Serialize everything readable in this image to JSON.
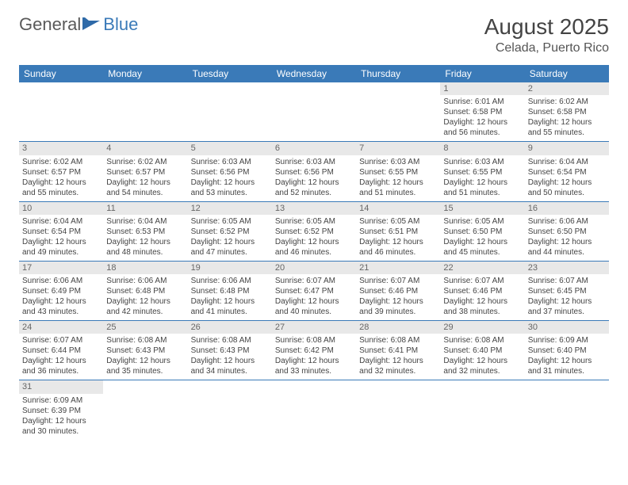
{
  "logo": {
    "text1": "General",
    "text2": "Blue"
  },
  "title": "August 2025",
  "location": "Celada, Puerto Rico",
  "colors": {
    "headerBg": "#3a7ab8",
    "dayBg": "#e8e8e8",
    "border": "#3a7ab8",
    "logoGray": "#5a5a5a",
    "logoBlue": "#3a7ab8"
  },
  "dayHeaders": [
    "Sunday",
    "Monday",
    "Tuesday",
    "Wednesday",
    "Thursday",
    "Friday",
    "Saturday"
  ],
  "weeks": [
    [
      {
        "blank": true
      },
      {
        "blank": true
      },
      {
        "blank": true
      },
      {
        "blank": true
      },
      {
        "blank": true
      },
      {
        "d": "1",
        "sr": "6:01 AM",
        "ss": "6:58 PM",
        "dl1": "Daylight: 12 hours",
        "dl2": "and 56 minutes."
      },
      {
        "d": "2",
        "sr": "6:02 AM",
        "ss": "6:58 PM",
        "dl1": "Daylight: 12 hours",
        "dl2": "and 55 minutes."
      }
    ],
    [
      {
        "d": "3",
        "sr": "6:02 AM",
        "ss": "6:57 PM",
        "dl1": "Daylight: 12 hours",
        "dl2": "and 55 minutes."
      },
      {
        "d": "4",
        "sr": "6:02 AM",
        "ss": "6:57 PM",
        "dl1": "Daylight: 12 hours",
        "dl2": "and 54 minutes."
      },
      {
        "d": "5",
        "sr": "6:03 AM",
        "ss": "6:56 PM",
        "dl1": "Daylight: 12 hours",
        "dl2": "and 53 minutes."
      },
      {
        "d": "6",
        "sr": "6:03 AM",
        "ss": "6:56 PM",
        "dl1": "Daylight: 12 hours",
        "dl2": "and 52 minutes."
      },
      {
        "d": "7",
        "sr": "6:03 AM",
        "ss": "6:55 PM",
        "dl1": "Daylight: 12 hours",
        "dl2": "and 51 minutes."
      },
      {
        "d": "8",
        "sr": "6:03 AM",
        "ss": "6:55 PM",
        "dl1": "Daylight: 12 hours",
        "dl2": "and 51 minutes."
      },
      {
        "d": "9",
        "sr": "6:04 AM",
        "ss": "6:54 PM",
        "dl1": "Daylight: 12 hours",
        "dl2": "and 50 minutes."
      }
    ],
    [
      {
        "d": "10",
        "sr": "6:04 AM",
        "ss": "6:54 PM",
        "dl1": "Daylight: 12 hours",
        "dl2": "and 49 minutes."
      },
      {
        "d": "11",
        "sr": "6:04 AM",
        "ss": "6:53 PM",
        "dl1": "Daylight: 12 hours",
        "dl2": "and 48 minutes."
      },
      {
        "d": "12",
        "sr": "6:05 AM",
        "ss": "6:52 PM",
        "dl1": "Daylight: 12 hours",
        "dl2": "and 47 minutes."
      },
      {
        "d": "13",
        "sr": "6:05 AM",
        "ss": "6:52 PM",
        "dl1": "Daylight: 12 hours",
        "dl2": "and 46 minutes."
      },
      {
        "d": "14",
        "sr": "6:05 AM",
        "ss": "6:51 PM",
        "dl1": "Daylight: 12 hours",
        "dl2": "and 46 minutes."
      },
      {
        "d": "15",
        "sr": "6:05 AM",
        "ss": "6:50 PM",
        "dl1": "Daylight: 12 hours",
        "dl2": "and 45 minutes."
      },
      {
        "d": "16",
        "sr": "6:06 AM",
        "ss": "6:50 PM",
        "dl1": "Daylight: 12 hours",
        "dl2": "and 44 minutes."
      }
    ],
    [
      {
        "d": "17",
        "sr": "6:06 AM",
        "ss": "6:49 PM",
        "dl1": "Daylight: 12 hours",
        "dl2": "and 43 minutes."
      },
      {
        "d": "18",
        "sr": "6:06 AM",
        "ss": "6:48 PM",
        "dl1": "Daylight: 12 hours",
        "dl2": "and 42 minutes."
      },
      {
        "d": "19",
        "sr": "6:06 AM",
        "ss": "6:48 PM",
        "dl1": "Daylight: 12 hours",
        "dl2": "and 41 minutes."
      },
      {
        "d": "20",
        "sr": "6:07 AM",
        "ss": "6:47 PM",
        "dl1": "Daylight: 12 hours",
        "dl2": "and 40 minutes."
      },
      {
        "d": "21",
        "sr": "6:07 AM",
        "ss": "6:46 PM",
        "dl1": "Daylight: 12 hours",
        "dl2": "and 39 minutes."
      },
      {
        "d": "22",
        "sr": "6:07 AM",
        "ss": "6:46 PM",
        "dl1": "Daylight: 12 hours",
        "dl2": "and 38 minutes."
      },
      {
        "d": "23",
        "sr": "6:07 AM",
        "ss": "6:45 PM",
        "dl1": "Daylight: 12 hours",
        "dl2": "and 37 minutes."
      }
    ],
    [
      {
        "d": "24",
        "sr": "6:07 AM",
        "ss": "6:44 PM",
        "dl1": "Daylight: 12 hours",
        "dl2": "and 36 minutes."
      },
      {
        "d": "25",
        "sr": "6:08 AM",
        "ss": "6:43 PM",
        "dl1": "Daylight: 12 hours",
        "dl2": "and 35 minutes."
      },
      {
        "d": "26",
        "sr": "6:08 AM",
        "ss": "6:43 PM",
        "dl1": "Daylight: 12 hours",
        "dl2": "and 34 minutes."
      },
      {
        "d": "27",
        "sr": "6:08 AM",
        "ss": "6:42 PM",
        "dl1": "Daylight: 12 hours",
        "dl2": "and 33 minutes."
      },
      {
        "d": "28",
        "sr": "6:08 AM",
        "ss": "6:41 PM",
        "dl1": "Daylight: 12 hours",
        "dl2": "and 32 minutes."
      },
      {
        "d": "29",
        "sr": "6:08 AM",
        "ss": "6:40 PM",
        "dl1": "Daylight: 12 hours",
        "dl2": "and 32 minutes."
      },
      {
        "d": "30",
        "sr": "6:09 AM",
        "ss": "6:40 PM",
        "dl1": "Daylight: 12 hours",
        "dl2": "and 31 minutes."
      }
    ],
    [
      {
        "d": "31",
        "sr": "6:09 AM",
        "ss": "6:39 PM",
        "dl1": "Daylight: 12 hours",
        "dl2": "and 30 minutes.",
        "last": true
      },
      {
        "blank": true,
        "last": true
      },
      {
        "blank": true,
        "last": true
      },
      {
        "blank": true,
        "last": true
      },
      {
        "blank": true,
        "last": true
      },
      {
        "blank": true,
        "last": true
      },
      {
        "blank": true,
        "last": true
      }
    ]
  ]
}
